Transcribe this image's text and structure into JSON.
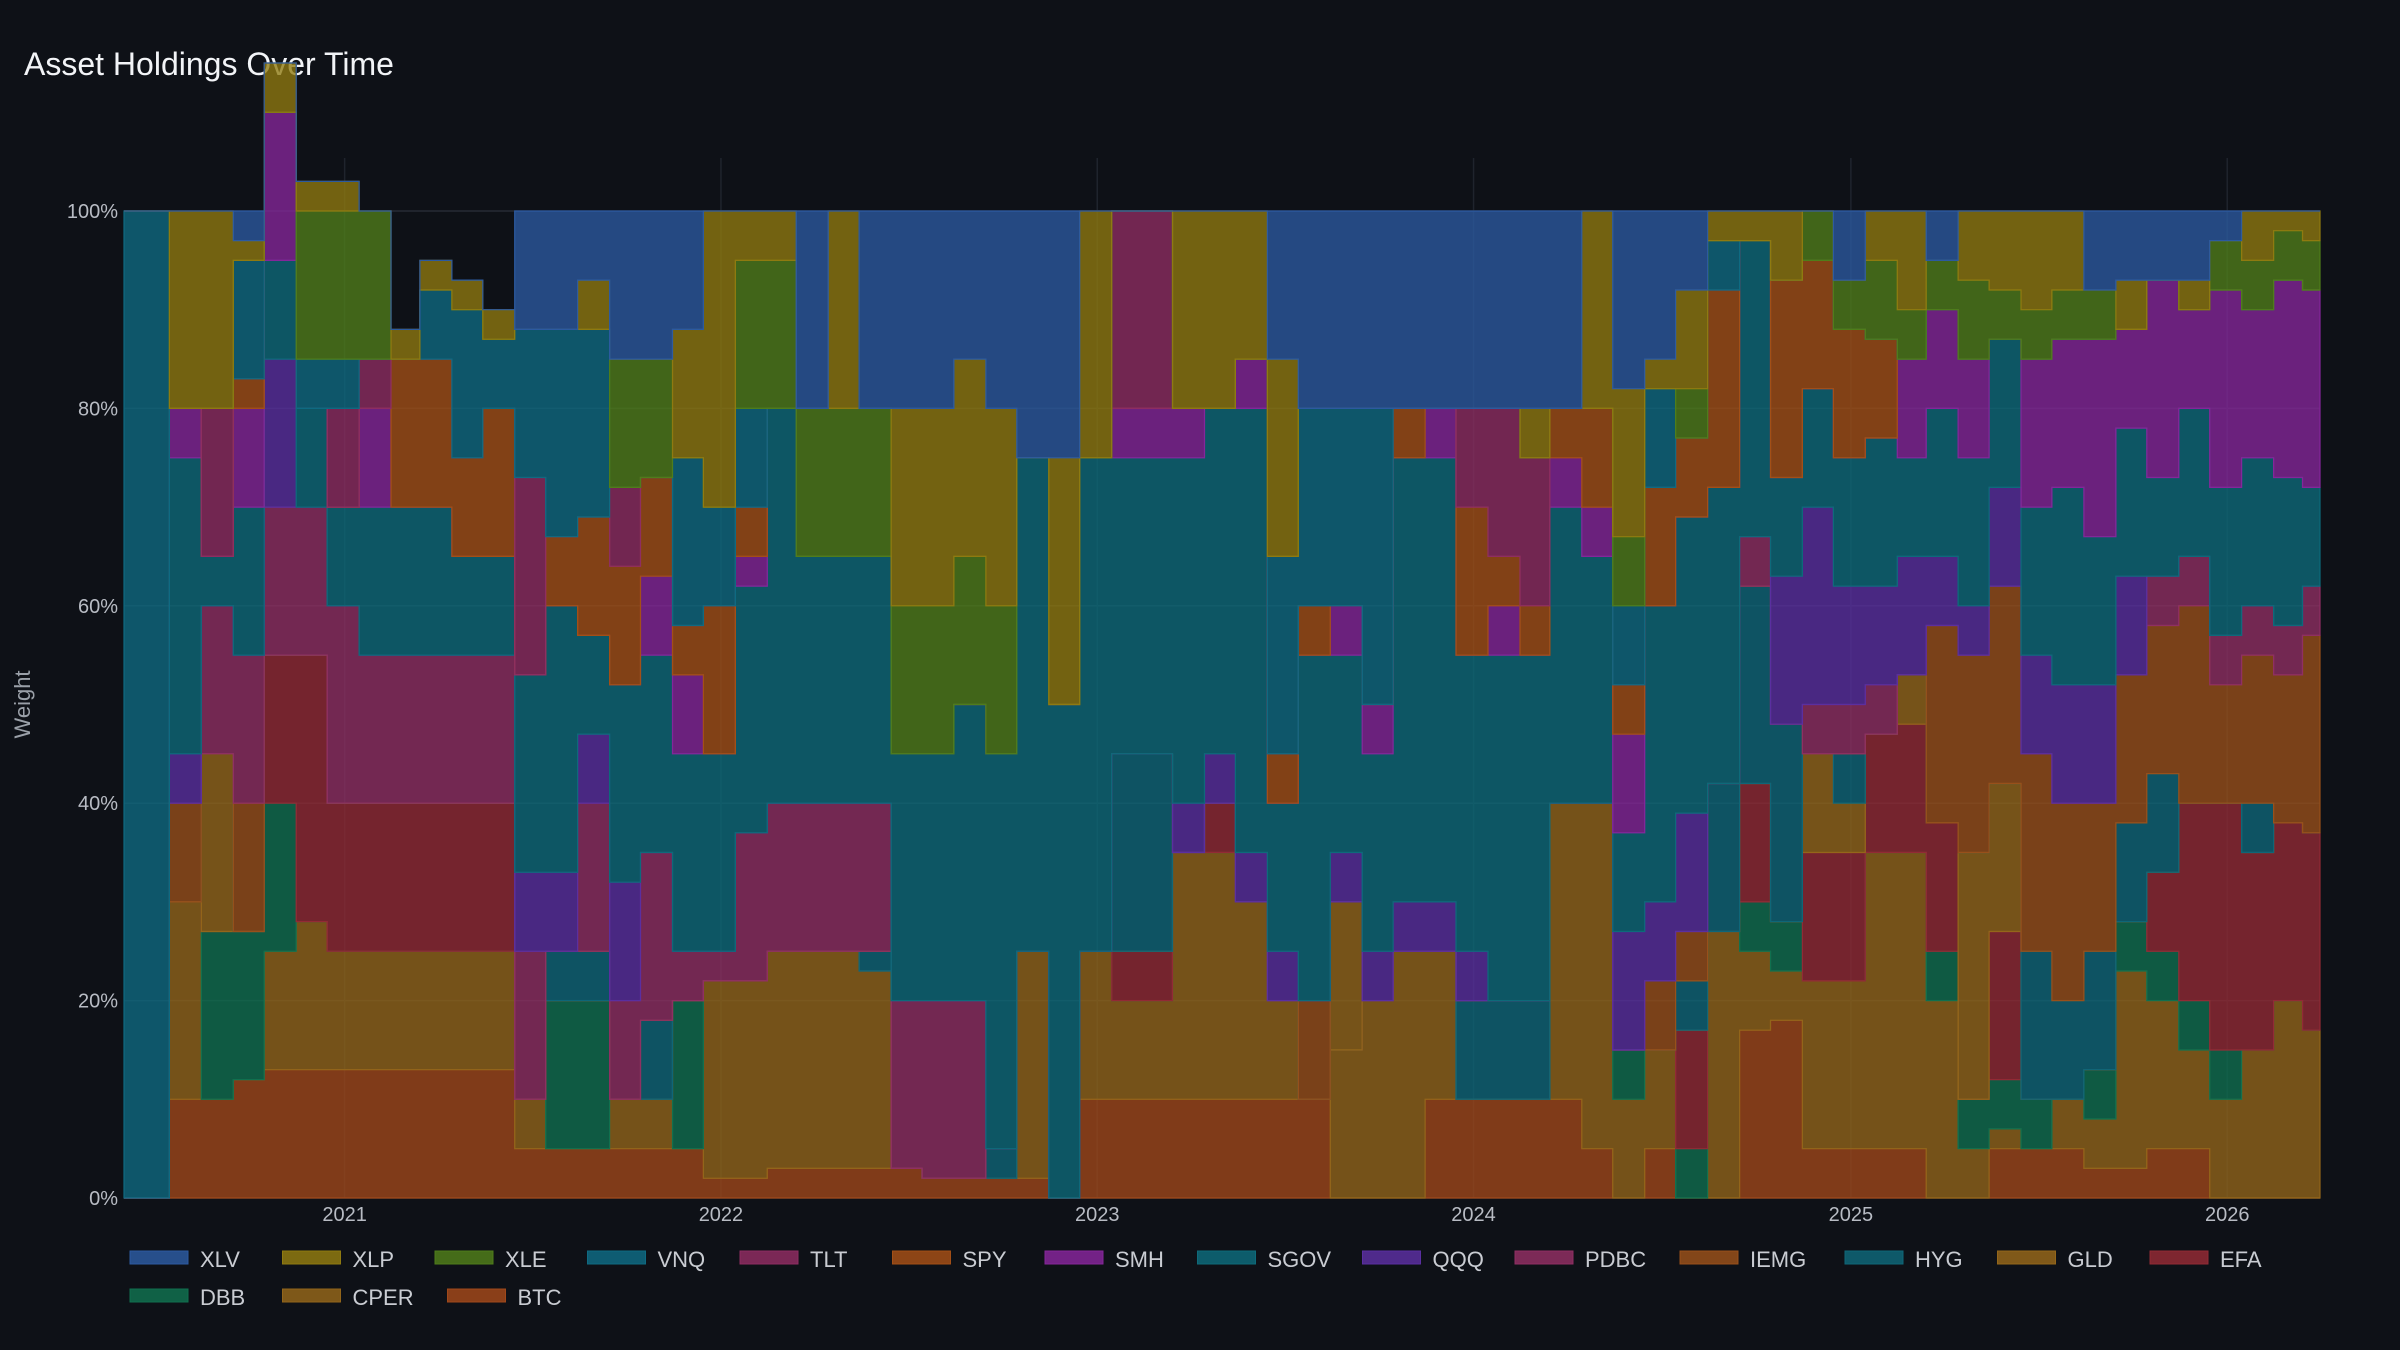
{
  "chart_data": {
    "type": "area",
    "title": "Asset Holdings Over Time",
    "xlabel": "",
    "ylabel": "Weight",
    "ylim": [
      0,
      100
    ],
    "y_ticks": [
      "0%",
      "20%",
      "40%",
      "60%",
      "80%",
      "100%"
    ],
    "x_range": [
      "2020-06-01",
      "2026-04-01"
    ],
    "x_ticks": [
      "2021",
      "2022",
      "2023",
      "2024",
      "2025",
      "2026"
    ],
    "grid": true,
    "legend_position": "bottom-left",
    "stack_order_bottom_to_top": [
      "BTC",
      "CPER",
      "DBB",
      "EFA",
      "GLD",
      "HYG",
      "IEMG",
      "PDBC",
      "QQQ",
      "SGOV",
      "SMH",
      "SPY",
      "TLT",
      "VNQ",
      "XLE",
      "XLP",
      "XLV"
    ],
    "series": [
      {
        "name": "XLV",
        "color": "#2c5aa0"
      },
      {
        "name": "XLP",
        "color": "#8f7a10"
      },
      {
        "name": "XLE",
        "color": "#4f7d1a"
      },
      {
        "name": "VNQ",
        "color": "#0e6a82"
      },
      {
        "name": "TLT",
        "color": "#8e2d62"
      },
      {
        "name": "SPY",
        "color": "#a34f16"
      },
      {
        "name": "SMH",
        "color": "#85269a"
      },
      {
        "name": "SGOV",
        "color": "#0d6a7a"
      },
      {
        "name": "QQQ",
        "color": "#5a2fa0"
      },
      {
        "name": "PDBC",
        "color": "#8f2f63"
      },
      {
        "name": "IEMG",
        "color": "#98501a"
      },
      {
        "name": "HYG",
        "color": "#0e6678"
      },
      {
        "name": "GLD",
        "color": "#94661a"
      },
      {
        "name": "EFA",
        "color": "#922a35"
      },
      {
        "name": "DBB",
        "color": "#10704f"
      },
      {
        "name": "CPER",
        "color": "#92651a"
      },
      {
        "name": "BTC",
        "color": "#a0481a"
      }
    ],
    "weights": [
      {
        "date": "2020-06-01",
        "holdings": {
          "VNQ": 100
        }
      },
      {
        "date": "2020-07-15",
        "holdings": {
          "BTC": 10,
          "CPER": 20,
          "IEMG": 10,
          "QQQ": 5,
          "SGOV": 30,
          "SMH": 5,
          "XLP": 20
        }
      },
      {
        "date": "2020-08-15",
        "holdings": {
          "BTC": 10,
          "DBB": 17,
          "GLD": 18,
          "PDBC": 15,
          "SGOV": 5,
          "TLT": 15,
          "XLP": 20
        }
      },
      {
        "date": "2020-09-15",
        "holdings": {
          "BTC": 12,
          "DBB": 15,
          "IEMG": 13,
          "PDBC": 15,
          "SGOV": 15,
          "SMH": 10,
          "SPY": 3,
          "XLP": 2,
          "XLV": 3,
          "VNQ": 12
        }
      },
      {
        "date": "2020-10-15",
        "holdings": {
          "BTC": 13,
          "CPER": 12,
          "DBB": 15,
          "EFA": 15,
          "PDBC": 15,
          "QQQ": 15,
          "SGOV": 10,
          "SMH": 15,
          "XLP": 5
        }
      },
      {
        "date": "2020-11-15",
        "holdings": {
          "BTC": 13,
          "CPER": 15,
          "EFA": 27,
          "PDBC": 15,
          "SGOV": 10,
          "VNQ": 5,
          "XLE": 15,
          "XLP": 3
        }
      },
      {
        "date": "2020-12-15",
        "holdings": {
          "BTC": 13,
          "CPER": 12,
          "EFA": 15,
          "PDBC": 20,
          "SGOV": 10,
          "TLT": 10,
          "VNQ": 5,
          "XLE": 15,
          "XLP": 3
        }
      },
      {
        "date": "2021-01-15",
        "holdings": {
          "BTC": 13,
          "CPER": 12,
          "EFA": 15,
          "PDBC": 15,
          "SGOV": 15,
          "SMH": 10,
          "TLT": 5,
          "XLE": 15
        }
      },
      {
        "date": "2021-02-15",
        "holdings": {
          "BTC": 13,
          "CPER": 12,
          "EFA": 15,
          "PDBC": 15,
          "SGOV": 15,
          "SPY": 15,
          "XLP": 3
        }
      },
      {
        "date": "2021-03-15",
        "holdings": {
          "BTC": 13,
          "CPER": 12,
          "EFA": 15,
          "PDBC": 15,
          "SGOV": 15,
          "SPY": 15,
          "VNQ": 7,
          "XLP": 3
        }
      },
      {
        "date": "2021-04-15",
        "holdings": {
          "BTC": 13,
          "CPER": 12,
          "EFA": 15,
          "PDBC": 15,
          "SGOV": 10,
          "SPY": 10,
          "VNQ": 15,
          "XLP": 3
        }
      },
      {
        "date": "2021-05-15",
        "holdings": {
          "BTC": 13,
          "CPER": 12,
          "EFA": 15,
          "PDBC": 15,
          "SGOV": 10,
          "SPY": 15,
          "VNQ": 7,
          "XLP": 3
        }
      },
      {
        "date": "2021-06-15",
        "holdings": {
          "BTC": 5,
          "CPER": 5,
          "PDBC": 15,
          "QQQ": 8,
          "SGOV": 20,
          "TLT": 20,
          "VNQ": 15,
          "XLV": 12
        }
      },
      {
        "date": "2021-07-15",
        "holdings": {
          "BTC": 5,
          "DBB": 15,
          "HYG": 5,
          "QQQ": 8,
          "SGOV": 27,
          "SPY": 7,
          "VNQ": 21,
          "XLV": 12
        }
      },
      {
        "date": "2021-08-15",
        "holdings": {
          "BTC": 5,
          "DBB": 15,
          "HYG": 5,
          "PDBC": 15,
          "QQQ": 7,
          "SGOV": 10,
          "SPY": 12,
          "VNQ": 19,
          "XLP": 5,
          "XLV": 7
        }
      },
      {
        "date": "2021-09-15",
        "holdings": {
          "BTC": 5,
          "CPER": 5,
          "PDBC": 10,
          "QQQ": 12,
          "SGOV": 20,
          "SPY": 12,
          "TLT": 8,
          "XLE": 13,
          "XLV": 15
        }
      },
      {
        "date": "2021-10-15",
        "holdings": {
          "BTC": 5,
          "CPER": 5,
          "HYG": 8,
          "PDBC": 17,
          "SGOV": 20,
          "SMH": 8,
          "SPY": 10,
          "XLE": 12,
          "XLV": 15
        }
      },
      {
        "date": "2021-11-15",
        "holdings": {
          "BTC": 5,
          "DBB": 15,
          "PDBC": 5,
          "SGOV": 20,
          "SMH": 8,
          "SPY": 5,
          "VNQ": 17,
          "XLP": 13,
          "XLV": 12
        }
      },
      {
        "date": "2021-12-15",
        "holdings": {
          "BTC": 2,
          "CPER": 20,
          "PDBC": 3,
          "SGOV": 20,
          "SPY": 15,
          "VNQ": 10,
          "XLP": 30
        }
      },
      {
        "date": "2022-01-15",
        "holdings": {
          "BTC": 2,
          "CPER": 20,
          "PDBC": 15,
          "SGOV": 25,
          "SMH": 3,
          "SPY": 5,
          "VNQ": 10,
          "XLE": 15,
          "XLP": 5
        }
      },
      {
        "date": "2022-02-15",
        "holdings": {
          "BTC": 3,
          "CPER": 22,
          "PDBC": 15,
          "SGOV": 40,
          "XLE": 15,
          "XLP": 5
        }
      },
      {
        "date": "2022-03-15",
        "holdings": {
          "BTC": 3,
          "CPER": 22,
          "PDBC": 15,
          "SGOV": 25,
          "XLE": 15,
          "XLV": 20
        }
      },
      {
        "date": "2022-04-15",
        "holdings": {
          "BTC": 3,
          "CPER": 22,
          "PDBC": 15,
          "SGOV": 25,
          "XLE": 15,
          "XLP": 20
        }
      },
      {
        "date": "2022-05-15",
        "holdings": {
          "BTC": 3,
          "CPER": 20,
          "HYG": 2,
          "PDBC": 15,
          "SGOV": 25,
          "XLE": 15,
          "XLV": 20
        }
      },
      {
        "date": "2022-06-15",
        "holdings": {
          "BTC": 3,
          "PDBC": 17,
          "SGOV": 25,
          "XLE": 15,
          "XLP": 20,
          "XLV": 20
        }
      },
      {
        "date": "2022-07-15",
        "holdings": {
          "BTC": 2,
          "PDBC": 18,
          "SGOV": 25,
          "XLE": 15,
          "XLP": 20,
          "XLV": 20
        }
      },
      {
        "date": "2022-08-15",
        "holdings": {
          "BTC": 2,
          "PDBC": 18,
          "SGOV": 30,
          "XLE": 15,
          "XLP": 20,
          "XLV": 15
        }
      },
      {
        "date": "2022-09-15",
        "holdings": {
          "BTC": 2,
          "HYG": 3,
          "SGOV": 40,
          "XLE": 15,
          "XLP": 20,
          "XLV": 20
        }
      },
      {
        "date": "2022-10-15",
        "holdings": {
          "BTC": 2,
          "CPER": 23,
          "SGOV": 50,
          "XLV": 25
        }
      },
      {
        "date": "2022-11-15",
        "holdings": {
          "SGOV": 50,
          "XLP": 25,
          "XLV": 25
        }
      },
      {
        "date": "2022-12-15",
        "holdings": {
          "BTC": 10,
          "CPER": 15,
          "SGOV": 50,
          "XLP": 25
        }
      },
      {
        "date": "2023-01-15",
        "holdings": {
          "BTC": 10,
          "CPER": 10,
          "EFA": 5,
          "HYG": 20,
          "SGOV": 30,
          "SMH": 5,
          "TLT": 20
        }
      },
      {
        "date": "2023-02-15",
        "holdings": {
          "BTC": 10,
          "CPER": 10,
          "EFA": 5,
          "HYG": 20,
          "SGOV": 30,
          "SMH": 5,
          "TLT": 20
        }
      },
      {
        "date": "2023-03-15",
        "holdings": {
          "BTC": 10,
          "CPER": 25,
          "QQQ": 5,
          "SGOV": 35,
          "SMH": 5,
          "XLP": 20
        }
      },
      {
        "date": "2023-04-15",
        "holdings": {
          "BTC": 10,
          "CPER": 25,
          "EFA": 5,
          "QQQ": 5,
          "SGOV": 35,
          "XLP": 20
        }
      },
      {
        "date": "2023-05-15",
        "holdings": {
          "BTC": 10,
          "CPER": 20,
          "QQQ": 5,
          "SGOV": 45,
          "SMH": 5,
          "XLP": 15
        }
      },
      {
        "date": "2023-06-15",
        "holdings": {
          "BTC": 10,
          "CPER": 10,
          "QQQ": 5,
          "SGOV": 15,
          "SPY": 5,
          "VNQ": 20,
          "XLP": 20,
          "XLV": 15
        }
      },
      {
        "date": "2023-07-15",
        "holdings": {
          "BTC": 10,
          "IEMG": 10,
          "SGOV": 35,
          "SPY": 5,
          "VNQ": 20,
          "XLV": 20
        }
      },
      {
        "date": "2023-08-15",
        "holdings": {
          "CPER": 15,
          "GLD": 15,
          "QQQ": 5,
          "SGOV": 20,
          "SMH": 5,
          "VNQ": 20,
          "XLV": 20
        }
      },
      {
        "date": "2023-09-15",
        "holdings": {
          "CPER": 20,
          "QQQ": 5,
          "SGOV": 20,
          "SMH": 5,
          "VNQ": 30,
          "XLV": 20
        }
      },
      {
        "date": "2023-10-15",
        "holdings": {
          "CPER": 25,
          "QQQ": 5,
          "SGOV": 45,
          "SPY": 5,
          "XLV": 20
        }
      },
      {
        "date": "2023-11-15",
        "holdings": {
          "BTC": 10,
          "CPER": 15,
          "QQQ": 5,
          "SGOV": 45,
          "SMH": 5,
          "XLV": 20
        }
      },
      {
        "date": "2023-12-15",
        "holdings": {
          "BTC": 10,
          "HYG": 10,
          "QQQ": 5,
          "SGOV": 30,
          "SPY": 15,
          "TLT": 10,
          "XLV": 20
        }
      },
      {
        "date": "2024-01-15",
        "holdings": {
          "BTC": 10,
          "HYG": 10,
          "SGOV": 35,
          "SMH": 5,
          "SPY": 5,
          "TLT": 15,
          "XLV": 20
        }
      },
      {
        "date": "2024-02-15",
        "holdings": {
          "BTC": 10,
          "HYG": 10,
          "SGOV": 35,
          "SPY": 5,
          "TLT": 15,
          "XLP": 5,
          "XLV": 20
        }
      },
      {
        "date": "2024-03-15",
        "holdings": {
          "BTC": 10,
          "CPER": 30,
          "SGOV": 30,
          "SMH": 5,
          "SPY": 5,
          "XLV": 20
        }
      },
      {
        "date": "2024-04-15",
        "holdings": {
          "BTC": 5,
          "CPER": 35,
          "SGOV": 25,
          "SMH": 5,
          "SPY": 10,
          "XLP": 20
        }
      },
      {
        "date": "2024-05-15",
        "holdings": {
          "CPER": 10,
          "DBB": 5,
          "QQQ": 12,
          "SGOV": 10,
          "SMH": 10,
          "SPY": 5,
          "VNQ": 8,
          "XLE": 7,
          "XLP": 15,
          "XLV": 18
        }
      },
      {
        "date": "2024-06-15",
        "holdings": {
          "BTC": 5,
          "CPER": 10,
          "IEMG": 7,
          "QQQ": 8,
          "SGOV": 30,
          "SPY": 12,
          "VNQ": 10,
          "XLP": 3,
          "XLV": 15
        }
      },
      {
        "date": "2024-07-15",
        "holdings": {
          "DBB": 5,
          "EFA": 12,
          "HYG": 5,
          "IEMG": 5,
          "QQQ": 12,
          "SGOV": 30,
          "SPY": 8,
          "XLE": 5,
          "XLP": 10,
          "XLV": 8
        }
      },
      {
        "date": "2024-08-15",
        "holdings": {
          "CPER": 27,
          "HYG": 15,
          "SGOV": 30,
          "SPY": 20,
          "VNQ": 5,
          "XLP": 3
        }
      },
      {
        "date": "2024-09-15",
        "holdings": {
          "BTC": 17,
          "CPER": 8,
          "DBB": 5,
          "EFA": 12,
          "HYG": 20,
          "PDBC": 5,
          "SGOV": 30,
          "XLP": 3
        }
      },
      {
        "date": "2024-10-15",
        "holdings": {
          "BTC": 18,
          "CPER": 5,
          "DBB": 5,
          "HYG": 20,
          "QQQ": 15,
          "SGOV": 10,
          "SPY": 20,
          "XLP": 7
        }
      },
      {
        "date": "2024-11-15",
        "holdings": {
          "BTC": 5,
          "CPER": 17,
          "EFA": 13,
          "GLD": 10,
          "PDBC": 5,
          "QQQ": 20,
          "SGOV": 12,
          "SPY": 13,
          "XLE": 5
        }
      },
      {
        "date": "2024-12-15",
        "holdings": {
          "BTC": 5,
          "CPER": 17,
          "EFA": 13,
          "GLD": 5,
          "HYG": 5,
          "PDBC": 5,
          "QQQ": 12,
          "SGOV": 13,
          "SPY": 13,
          "XLE": 5,
          "XLV": 7
        }
      },
      {
        "date": "2025-01-15",
        "holdings": {
          "BTC": 5,
          "CPER": 30,
          "EFA": 12,
          "PDBC": 5,
          "QQQ": 10,
          "SGOV": 15,
          "SPY": 10,
          "XLE": 8,
          "XLP": 5
        }
      },
      {
        "date": "2025-02-15",
        "holdings": {
          "BTC": 5,
          "CPER": 30,
          "EFA": 13,
          "GLD": 5,
          "QQQ": 12,
          "SGOV": 10,
          "SMH": 10,
          "XLE": 5,
          "XLP": 10
        }
      },
      {
        "date": "2025-03-15",
        "holdings": {
          "CPER": 20,
          "DBB": 5,
          "EFA": 13,
          "IEMG": 20,
          "QQQ": 7,
          "SGOV": 15,
          "SMH": 10,
          "XLE": 5,
          "XLV": 5
        }
      },
      {
        "date": "2025-04-15",
        "holdings": {
          "CPER": 5,
          "DBB": 5,
          "GLD": 25,
          "IEMG": 20,
          "QQQ": 5,
          "SGOV": 15,
          "SMH": 10,
          "XLE": 8,
          "XLP": 7
        }
      },
      {
        "date": "2025-05-15",
        "holdings": {
          "BTC": 5,
          "CPER": 2,
          "DBB": 5,
          "EFA": 15,
          "GLD": 15,
          "IEMG": 20,
          "QQQ": 10,
          "SGOV": 15,
          "XLE": 5,
          "XLP": 8
        }
      },
      {
        "date": "2025-06-15",
        "holdings": {
          "BTC": 5,
          "DBB": 5,
          "HYG": 15,
          "IEMG": 20,
          "QQQ": 10,
          "SGOV": 15,
          "SMH": 15,
          "XLE": 5,
          "XLP": 10
        }
      },
      {
        "date": "2025-07-15",
        "holdings": {
          "BTC": 5,
          "CPER": 5,
          "HYG": 10,
          "IEMG": 20,
          "QQQ": 12,
          "SGOV": 20,
          "SMH": 15,
          "XLE": 5,
          "XLP": 8
        }
      },
      {
        "date": "2025-08-15",
        "holdings": {
          "BTC": 3,
          "CPER": 5,
          "DBB": 5,
          "HYG": 12,
          "IEMG": 15,
          "QQQ": 12,
          "SGOV": 15,
          "SMH": 20,
          "XLE": 5,
          "XLV": 8
        }
      },
      {
        "date": "2025-09-15",
        "holdings": {
          "BTC": 3,
          "CPER": 20,
          "DBB": 5,
          "HYG": 10,
          "IEMG": 15,
          "QQQ": 10,
          "SGOV": 15,
          "SMH": 10,
          "XLP": 5,
          "XLV": 7
        }
      },
      {
        "date": "2025-10-15",
        "holdings": {
          "BTC": 5,
          "CPER": 15,
          "DBB": 5,
          "EFA": 8,
          "HYG": 10,
          "IEMG": 15,
          "PDBC": 5,
          "SGOV": 10,
          "SMH": 20,
          "XLV": 7
        }
      },
      {
        "date": "2025-11-15",
        "holdings": {
          "BTC": 5,
          "CPER": 10,
          "DBB": 5,
          "EFA": 20,
          "IEMG": 20,
          "PDBC": 5,
          "SGOV": 15,
          "SMH": 10,
          "XLP": 3,
          "XLV": 7
        }
      },
      {
        "date": "2025-12-15",
        "holdings": {
          "CPER": 10,
          "DBB": 5,
          "EFA": 25,
          "IEMG": 12,
          "PDBC": 5,
          "SGOV": 15,
          "SMH": 20,
          "XLE": 5,
          "XLV": 3
        }
      },
      {
        "date": "2026-01-15",
        "holdings": {
          "CPER": 15,
          "EFA": 20,
          "HYG": 5,
          "IEMG": 15,
          "PDBC": 5,
          "SGOV": 15,
          "SMH": 15,
          "XLE": 5,
          "XLP": 5
        }
      },
      {
        "date": "2026-02-15",
        "holdings": {
          "CPER": 20,
          "EFA": 18,
          "IEMG": 15,
          "PDBC": 5,
          "SGOV": 15,
          "SMH": 20,
          "XLE": 5,
          "XLP": 2
        }
      },
      {
        "date": "2026-03-15",
        "holdings": {
          "CPER": 17,
          "EFA": 20,
          "IEMG": 20,
          "PDBC": 5,
          "SGOV": 10,
          "SMH": 20,
          "XLE": 5,
          "XLP": 3
        }
      }
    ]
  }
}
